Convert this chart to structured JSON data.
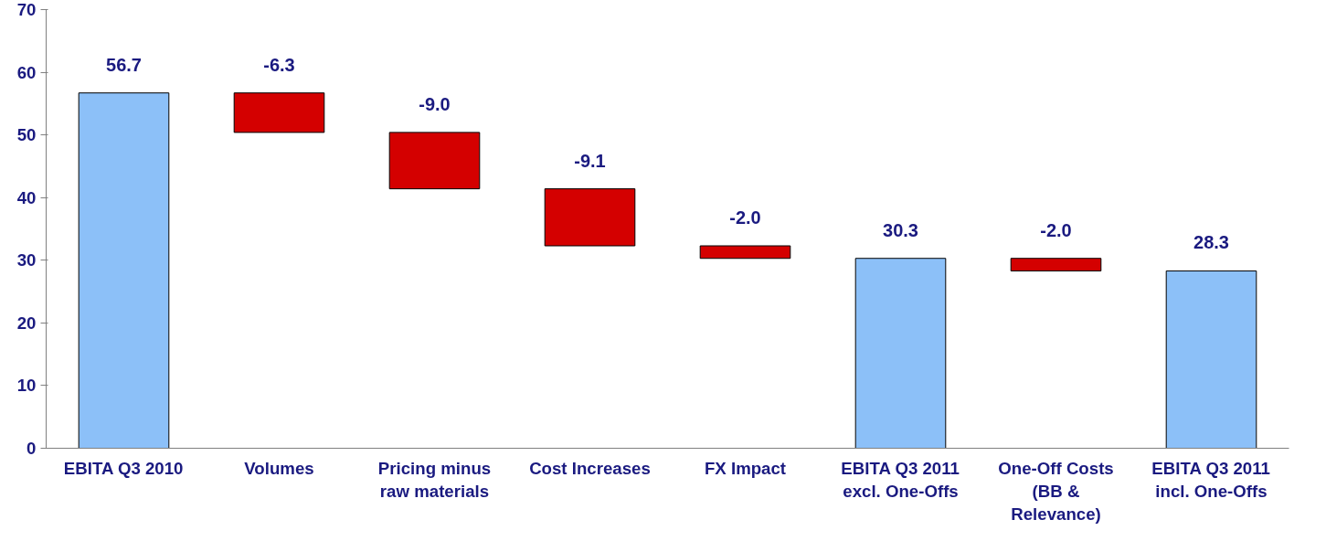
{
  "chart_data": {
    "type": "bar",
    "categories": [
      "EBITA Q3 2010",
      "Volumes",
      "Pricing minus raw materials",
      "Cost Increases",
      "FX Impact",
      "EBITA Q3 2011 excl. One-Offs",
      "One-Off Costs (BB & Relevance)",
      "EBITA Q3 2011 incl. One-Offs"
    ],
    "values": [
      56.7,
      -6.3,
      -9.0,
      -9.1,
      -2.0,
      30.3,
      -2.0,
      28.3
    ],
    "base": [
      0,
      56.7,
      50.4,
      41.4,
      32.3,
      0,
      30.3,
      0
    ],
    "colors": [
      "#8cc0f8",
      "#d40000",
      "#d40000",
      "#d40000",
      "#d40000",
      "#8cc0f8",
      "#d40000",
      "#8cc0f8"
    ],
    "value_labels": [
      "56.7",
      "-6.3",
      "-9.0",
      "-9.1",
      "-2.0",
      "30.3",
      "-2.0",
      "28.3"
    ],
    "ylim": [
      0,
      70
    ],
    "yticks": [
      0,
      10,
      20,
      30,
      40,
      50,
      60,
      70
    ],
    "grid": false
  }
}
